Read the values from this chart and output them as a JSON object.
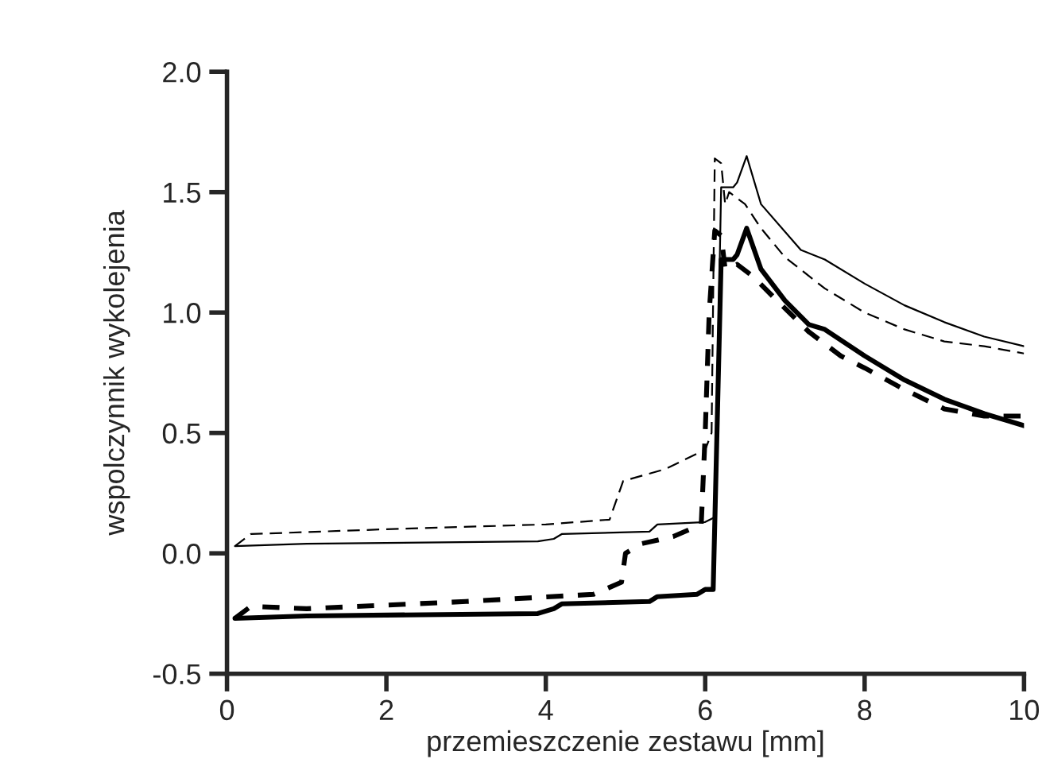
{
  "chart_data": {
    "type": "line",
    "xlabel": "przemieszczenie zestawu [mm]",
    "ylabel": "wspolczynnik wykolejenia",
    "xlim": [
      0,
      10
    ],
    "xticks": [
      0,
      2,
      4,
      6,
      8,
      10
    ],
    "ylim": [
      -0.5,
      2.0
    ],
    "yticks": [
      {
        "value": -0.5,
        "label": "-0.5"
      },
      {
        "value": 0,
        "label": "0.0"
      },
      {
        "value": 0.5,
        "label": "0.5"
      },
      {
        "value": 1,
        "label": "1.0"
      },
      {
        "value": 1.5,
        "label": "1.5"
      },
      {
        "value": 2,
        "label": "2.0"
      }
    ],
    "grid": false,
    "legend": false,
    "marker": "none",
    "series": [
      {
        "color": "#000000",
        "line_style": "solid",
        "x": [
          0.1,
          1,
          3.9,
          4.1,
          4.2,
          5.3,
          5.4,
          6.0,
          6.12,
          6.2,
          6.35,
          6.4,
          6.52,
          6.7,
          7.2,
          7.5,
          8,
          8.5,
          9,
          9.5,
          10
        ],
        "values": [
          0.03,
          0.04,
          0.05,
          0.06,
          0.08,
          0.09,
          0.12,
          0.13,
          0.15,
          1.52,
          1.52,
          1.54,
          1.65,
          1.45,
          1.26,
          1.22,
          1.12,
          1.03,
          0.96,
          0.9,
          0.86
        ]
      },
      {
        "color": "#000000",
        "line_style": "dashed",
        "x": [
          0.1,
          0.3,
          2,
          4,
          4.8,
          4.97,
          5.5,
          6.0,
          6.08,
          6.12,
          6.2,
          6.25,
          6.3,
          6.5,
          6.7,
          7,
          7.5,
          8,
          8.5,
          9,
          9.5,
          10
        ],
        "values": [
          0.03,
          0.08,
          0.1,
          0.12,
          0.14,
          0.3,
          0.35,
          0.43,
          0.5,
          1.64,
          1.62,
          1.45,
          1.5,
          1.45,
          1.35,
          1.23,
          1.1,
          1.0,
          0.93,
          0.88,
          0.86,
          0.83
        ]
      },
      {
        "color": "#000000",
        "line_style": "solid",
        "x": [
          0.1,
          1,
          3.9,
          4.1,
          4.2,
          5.3,
          5.4,
          5.9,
          6.0,
          6.1,
          6.2,
          6.35,
          6.4,
          6.52,
          6.7,
          7,
          7.3,
          7.5,
          8,
          8.5,
          9,
          9.5,
          10
        ],
        "values": [
          -0.27,
          -0.26,
          -0.25,
          -0.23,
          -0.21,
          -0.2,
          -0.18,
          -0.17,
          -0.15,
          -0.15,
          1.22,
          1.22,
          1.24,
          1.35,
          1.18,
          1.05,
          0.95,
          0.93,
          0.82,
          0.72,
          0.64,
          0.58,
          0.53
        ]
      },
      {
        "color": "#000000",
        "line_style": "dashed",
        "x": [
          0.1,
          0.3,
          1,
          3,
          4.6,
          4.95,
          5.0,
          5.2,
          5.6,
          5.95,
          6.0,
          6.05,
          6.12,
          6.2,
          6.25,
          6.4,
          6.6,
          6.9,
          7.3,
          7.7,
          8,
          8.5,
          9,
          9.5,
          10
        ],
        "values": [
          -0.27,
          -0.22,
          -0.23,
          -0.2,
          -0.17,
          -0.12,
          0.0,
          0.04,
          0.07,
          0.12,
          0.5,
          1.0,
          1.34,
          1.32,
          1.18,
          1.2,
          1.15,
          1.05,
          0.92,
          0.82,
          0.77,
          0.68,
          0.6,
          0.57,
          0.57
        ]
      }
    ]
  }
}
